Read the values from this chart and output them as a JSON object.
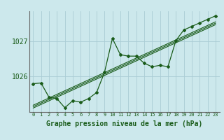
{
  "title": "Graphe pression niveau de la mer (hPa)",
  "bg_color": "#cce8ec",
  "grid_color": "#aaccd4",
  "line_color": "#1a5c1a",
  "x_values": [
    0,
    1,
    2,
    3,
    4,
    5,
    6,
    7,
    8,
    9,
    10,
    11,
    12,
    13,
    14,
    15,
    16,
    17,
    18,
    19,
    20,
    21,
    22,
    23
  ],
  "y_data": [
    1025.8,
    1025.82,
    1025.42,
    1025.38,
    1025.12,
    1025.32,
    1025.28,
    1025.38,
    1025.55,
    1026.12,
    1027.08,
    1026.62,
    1026.58,
    1026.58,
    1026.38,
    1026.28,
    1026.32,
    1026.28,
    1027.02,
    1027.32,
    1027.42,
    1027.52,
    1027.62,
    1027.72
  ],
  "yticks": [
    1026,
    1027
  ],
  "ylim": [
    1025.0,
    1027.85
  ],
  "xlim": [
    -0.5,
    23.5
  ],
  "figsize": [
    3.2,
    2.0
  ],
  "dpi": 100
}
